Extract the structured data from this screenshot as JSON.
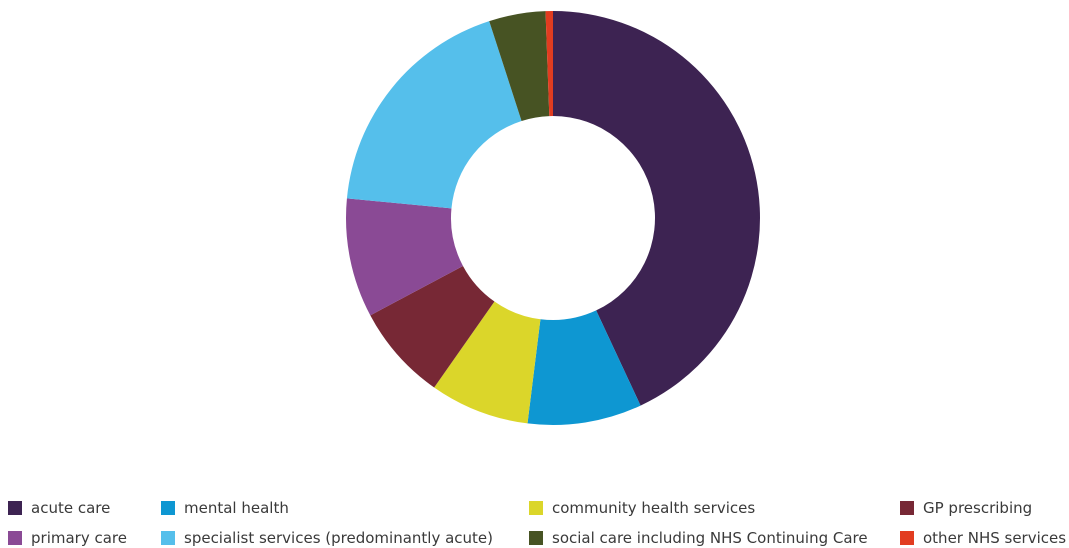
{
  "chart_data": {
    "type": "pie",
    "donut": true,
    "title": "",
    "legend_position": "bottom",
    "slices": [
      {
        "label": "acute care",
        "value": 44.9,
        "color": "#3d2352"
      },
      {
        "label": "mental health",
        "value": 9.3,
        "color": "#0e97d2"
      },
      {
        "label": "community health services",
        "value": 8.1,
        "color": "#dbd62a"
      },
      {
        "label": "GP prescribing",
        "value": 7.8,
        "color": "#772835"
      },
      {
        "label": "primary care",
        "value": 9.7,
        "color": "#8a4a95"
      },
      {
        "label": "specialist services (predominantly acute)",
        "value": 19.3,
        "color": "#55bfeb"
      },
      {
        "label": "social care including NHS Continuing Care",
        "value": 4.6,
        "color": "#475323"
      },
      {
        "label": "other NHS services",
        "value": 0.6,
        "color": "#e23c20"
      }
    ]
  }
}
